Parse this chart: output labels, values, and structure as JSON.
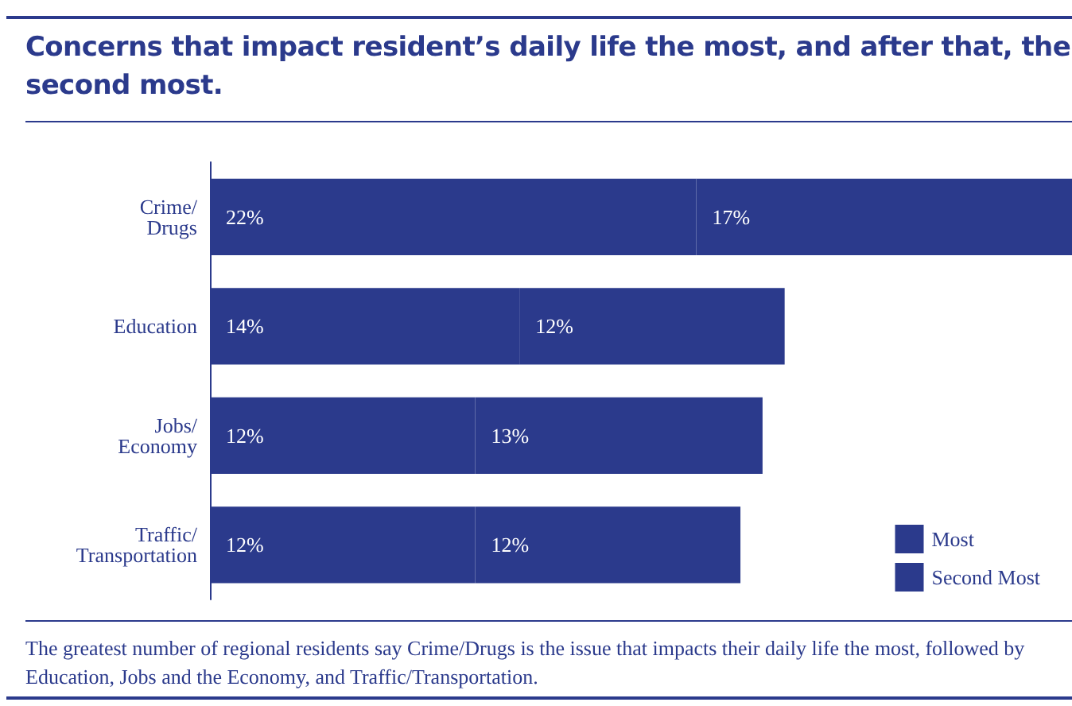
{
  "chart_data": {
    "type": "bar",
    "orientation": "horizontal",
    "stacked": true,
    "title": "Concerns that impact resident’s daily life the most, and after that, the second most.",
    "categories": [
      "Crime/\nDrugs",
      "Education",
      "Jobs/\nEconomy",
      "Traffic/\nTransportation"
    ],
    "series": [
      {
        "name": "Most",
        "color": "#2b3a8c",
        "values": [
          22,
          14,
          12,
          12
        ],
        "value_labels": [
          "22%",
          "14%",
          "12%",
          "12%"
        ]
      },
      {
        "name": "Second Most",
        "color": "#2b3a8c",
        "values": [
          17,
          12,
          13,
          12
        ],
        "value_labels": [
          "17%",
          "12%",
          "13%",
          "12%"
        ]
      }
    ],
    "legend": "bottom right",
    "grid": false,
    "annotations": [
      "The greatest number of regional residents say Crime/Drugs is the issue that impacts their daily life the most, followed by Education, Jobs and the Economy, and Traffic/Transportation."
    ]
  }
}
